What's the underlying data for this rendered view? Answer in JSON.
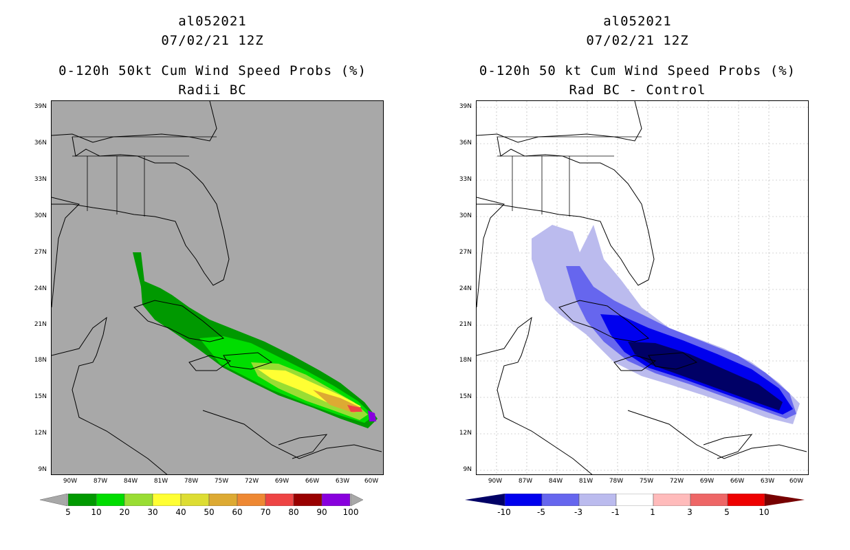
{
  "left_panel": {
    "storm_id": "al052021",
    "datetime": "07/02/21 12Z",
    "title": "0-120h 50kt Cum Wind Speed Probs (%)",
    "subtitle": "Radii BC",
    "background_color": "#a8a8a8",
    "colorbar": {
      "labels": [
        "5",
        "10",
        "20",
        "30",
        "40",
        "50",
        "60",
        "70",
        "80",
        "90",
        "100"
      ],
      "colors": [
        "#009900",
        "#00dd00",
        "#99dd33",
        "#ffff33",
        "#dddd33",
        "#ddaa33",
        "#ee8833",
        "#ee4444",
        "#990000",
        "#8800dd"
      ]
    }
  },
  "right_panel": {
    "storm_id": "al052021",
    "datetime": "07/02/21 12Z",
    "title": "0-120h 50 kt Cum Wind Speed Probs (%)",
    "subtitle": "Rad BC - Control",
    "background_color": "#ffffff",
    "colorbar": {
      "labels": [
        "-10",
        "-5",
        "-3",
        "-1",
        "1",
        "3",
        "5",
        "10"
      ],
      "colors": [
        "#000066",
        "#0000ee",
        "#6666ee",
        "#bbbbee",
        "#ffffff",
        "#ffbbbb",
        "#ee6666",
        "#ee0000",
        "#770000"
      ]
    }
  },
  "axes": {
    "lat_labels": [
      "39N",
      "36N",
      "33N",
      "30N",
      "27N",
      "24N",
      "21N",
      "18N",
      "15N",
      "12N",
      "9N"
    ],
    "lon_labels": [
      "90W",
      "87W",
      "84W",
      "81W",
      "78W",
      "75W",
      "72W",
      "69W",
      "66W",
      "63W",
      "60W"
    ]
  }
}
